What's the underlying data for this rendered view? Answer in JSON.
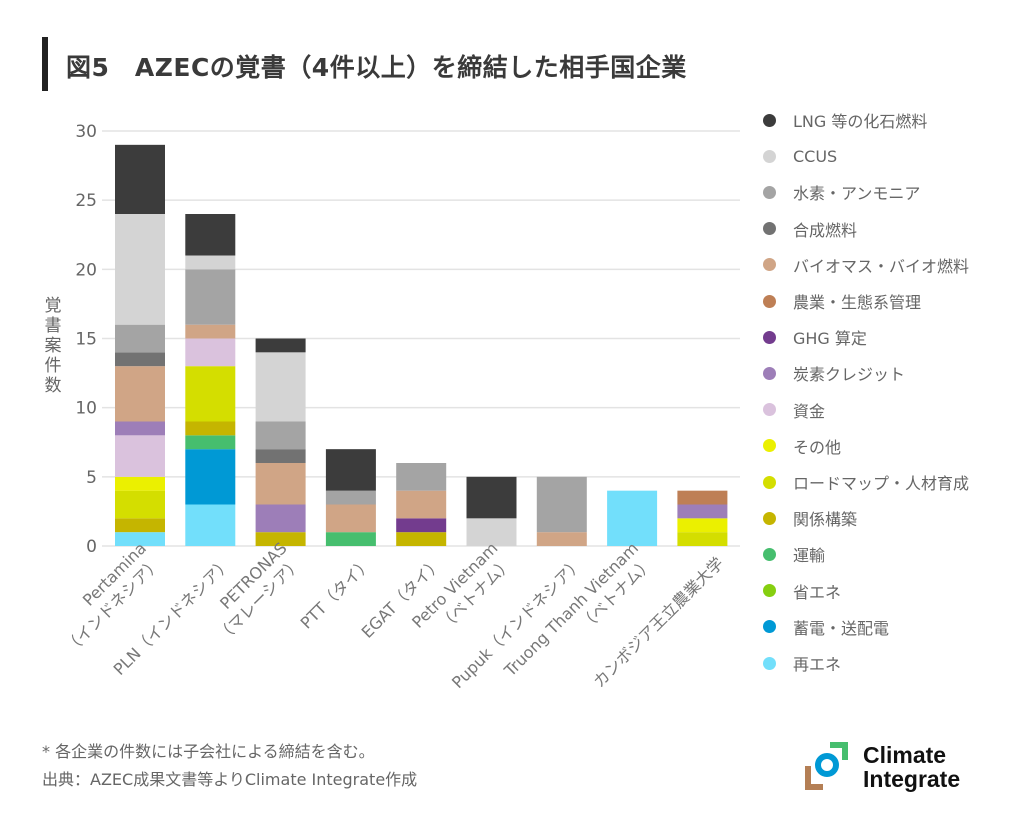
{
  "title": "図5　AZECの覚書（4件以上）を締結した相手国企業",
  "y_axis_label_chars": [
    "覚",
    "書",
    "案",
    "件",
    "数"
  ],
  "note": "* 各企業の件数には子会社による締結を含む。",
  "source": "出典：AZEC成果文書等よりClimate Integrate作成",
  "logo": {
    "line1": "Climate",
    "line2": "Integrate"
  },
  "chart_data": {
    "type": "bar",
    "stacked": true,
    "title": "図5　AZECの覚書（4件以上）を締結した相手国企業",
    "xlabel": "",
    "ylabel": "覚書案件数",
    "ylim": [
      0,
      30
    ],
    "yticks": [
      0,
      5,
      10,
      15,
      20,
      25,
      30
    ],
    "grid": true,
    "legend_position": "right",
    "categories": [
      {
        "line1": "Pertamina",
        "line2": "（インドネシア）"
      },
      {
        "line1": "PLN（インドネシア）",
        "line2": ""
      },
      {
        "line1": "PETRONAS",
        "line2": "（マレーシア）"
      },
      {
        "line1": "PTT（タイ）",
        "line2": ""
      },
      {
        "line1": "EGAT（タイ）",
        "line2": ""
      },
      {
        "line1": "Petro Vietnam",
        "line2": "（ベトナム）"
      },
      {
        "line1": "Pupuk（インドネシア）",
        "line2": ""
      },
      {
        "line1": "Truong Thanh Vietnam",
        "line2": "（ベトナム）"
      },
      {
        "line1": "カンボジア王立農業大学",
        "line2": ""
      }
    ],
    "series": [
      {
        "name": "再エネ",
        "color": "#72DFFB",
        "values": [
          1,
          3,
          0,
          0,
          0,
          0,
          0,
          4,
          0
        ]
      },
      {
        "name": "蓄電・送配電",
        "color": "#0099D5",
        "values": [
          0,
          4,
          0,
          0,
          0,
          0,
          0,
          0,
          0
        ]
      },
      {
        "name": "省エネ",
        "color": "#86CF10",
        "values": [
          0,
          0,
          0,
          0,
          0,
          0,
          0,
          0,
          0
        ]
      },
      {
        "name": "運輸",
        "color": "#46BE6E",
        "values": [
          0,
          1,
          0,
          1,
          0,
          0,
          0,
          0,
          0
        ]
      },
      {
        "name": "関係構築",
        "color": "#C5B500",
        "values": [
          1,
          1,
          1,
          0,
          1,
          0,
          0,
          0,
          0
        ]
      },
      {
        "name": "ロードマップ・人材育成",
        "color": "#D4DE00",
        "values": [
          2,
          4,
          0,
          0,
          0,
          0,
          0,
          0,
          1
        ]
      },
      {
        "name": "その他",
        "color": "#EBF000",
        "values": [
          1,
          0,
          0,
          0,
          0,
          0,
          0,
          0,
          1
        ]
      },
      {
        "name": "資金",
        "color": "#DAC2DD",
        "values": [
          3,
          2,
          0,
          0,
          0,
          0,
          0,
          0,
          0
        ]
      },
      {
        "name": "炭素クレジット",
        "color": "#9D7EB8",
        "values": [
          1,
          0,
          2,
          0,
          0,
          0,
          0,
          0,
          1
        ]
      },
      {
        "name": "GHG 算定",
        "color": "#733C8E",
        "values": [
          0,
          0,
          0,
          0,
          1,
          0,
          0,
          0,
          0
        ]
      },
      {
        "name": "農業・生態系管理",
        "color": "#BE7F55",
        "values": [
          0,
          0,
          0,
          0,
          0,
          0,
          0,
          0,
          1
        ]
      },
      {
        "name": "バイオマス・バイオ燃料",
        "color": "#D0A586",
        "values": [
          4,
          1,
          3,
          2,
          2,
          0,
          1,
          0,
          0
        ]
      },
      {
        "name": "合成燃料",
        "color": "#727272",
        "values": [
          1,
          0,
          1,
          0,
          0,
          0,
          0,
          0,
          0
        ]
      },
      {
        "name": "水素・アンモニア",
        "color": "#A4A4A4",
        "values": [
          2,
          4,
          2,
          1,
          2,
          0,
          4,
          0,
          0
        ]
      },
      {
        "name": "CCUS",
        "color": "#D4D4D4",
        "values": [
          8,
          1,
          5,
          0,
          0,
          2,
          0,
          0,
          0
        ]
      },
      {
        "name": "LNG 等の化石燃料",
        "color": "#3C3C3C",
        "values": [
          5,
          3,
          1,
          3,
          0,
          3,
          0,
          0,
          0
        ]
      }
    ],
    "totals": [
      29,
      24,
      15,
      7,
      6,
      5,
      5,
      4,
      4
    ],
    "legend_order": [
      "LNG 等の化石燃料",
      "CCUS",
      "水素・アンモニア",
      "合成燃料",
      "バイオマス・バイオ燃料",
      "農業・生態系管理",
      "GHG 算定",
      "炭素クレジット",
      "資金",
      "その他",
      "ロードマップ・人材育成",
      "関係構築",
      "運輸",
      "省エネ",
      "蓄電・送配電",
      "再エネ"
    ]
  }
}
